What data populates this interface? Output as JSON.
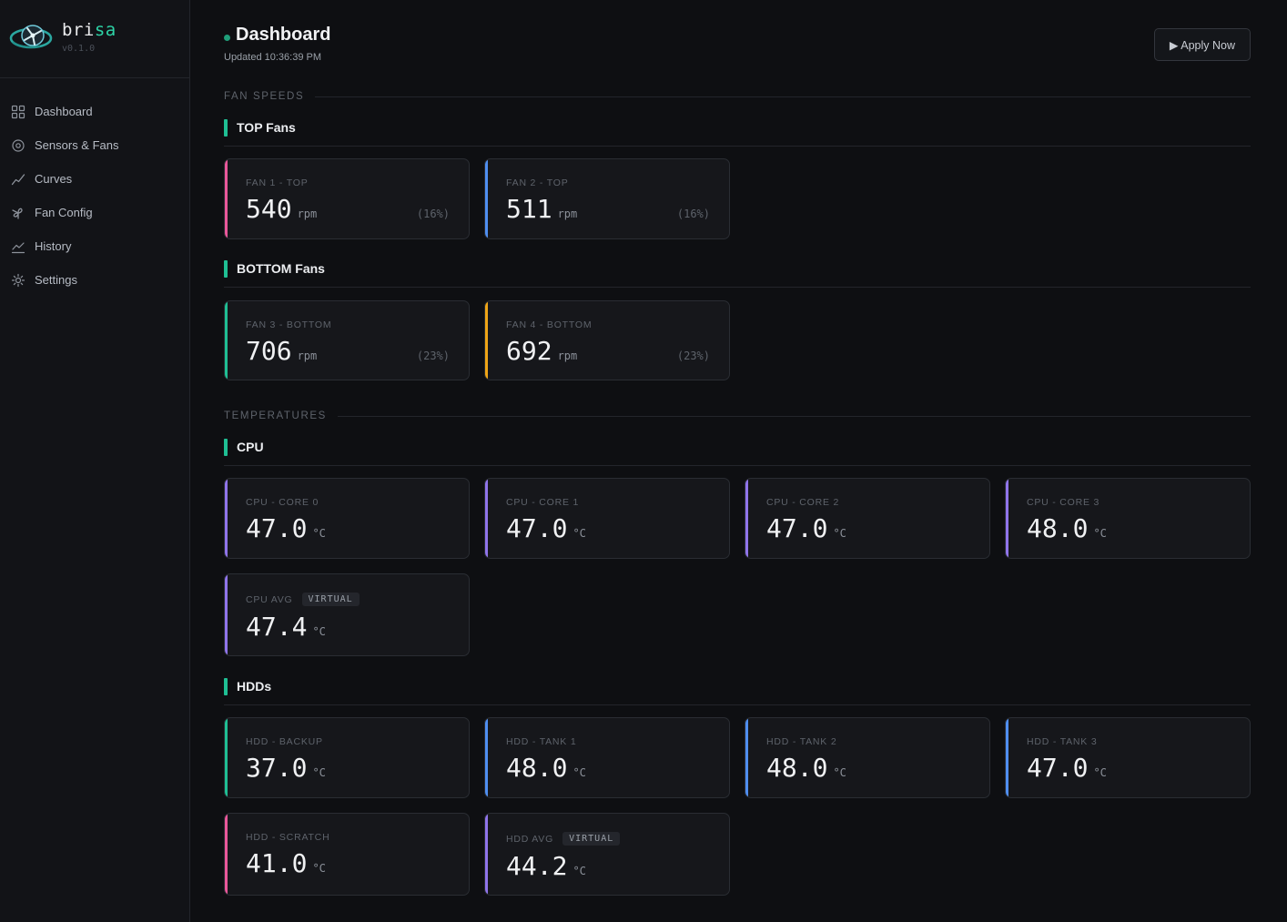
{
  "app": {
    "name_a": "bri",
    "name_b": "sa",
    "version": "v0.1.0"
  },
  "sidebar": {
    "items": [
      {
        "label": "Dashboard",
        "icon": "grid-icon"
      },
      {
        "label": "Sensors & Fans",
        "icon": "sensor-icon"
      },
      {
        "label": "Curves",
        "icon": "curve-icon"
      },
      {
        "label": "Fan Config",
        "icon": "fan-icon"
      },
      {
        "label": "History",
        "icon": "history-chart-icon"
      },
      {
        "label": "Settings",
        "icon": "gear-icon"
      }
    ]
  },
  "header": {
    "title": "Dashboard",
    "updated": "Updated 10:36:39 PM",
    "apply_label": "▶ Apply Now"
  },
  "colors": {
    "teal": "#1fbf94",
    "pink": "#e9579a",
    "blue": "#4f8ef0",
    "amber": "#efa516",
    "purple": "#8f74ea"
  },
  "fan_speeds": {
    "label": "FAN SPEEDS",
    "groups": [
      {
        "title": "TOP Fans",
        "cards": [
          {
            "label": "FAN 1 - TOP",
            "value": "540",
            "unit": "rpm",
            "pct": "(16%)",
            "accent": "#e9579a"
          },
          {
            "label": "FAN 2 - TOP",
            "value": "511",
            "unit": "rpm",
            "pct": "(16%)",
            "accent": "#4f8ef0"
          }
        ]
      },
      {
        "title": "BOTTOM Fans",
        "cards": [
          {
            "label": "FAN 3 - BOTTOM",
            "value": "706",
            "unit": "rpm",
            "pct": "(23%)",
            "accent": "#1fbf94"
          },
          {
            "label": "FAN 4 - BOTTOM",
            "value": "692",
            "unit": "rpm",
            "pct": "(23%)",
            "accent": "#efa516"
          }
        ]
      }
    ]
  },
  "temperatures": {
    "label": "TEMPERATURES",
    "groups": [
      {
        "title": "CPU",
        "cards": [
          {
            "label": "CPU - CORE 0",
            "value": "47.0",
            "unit": "°C",
            "accent": "#8f74ea"
          },
          {
            "label": "CPU - CORE 1",
            "value": "47.0",
            "unit": "°C",
            "accent": "#8f74ea"
          },
          {
            "label": "CPU - CORE 2",
            "value": "47.0",
            "unit": "°C",
            "accent": "#8f74ea"
          },
          {
            "label": "CPU - CORE 3",
            "value": "48.0",
            "unit": "°C",
            "accent": "#8f74ea"
          },
          {
            "label": "CPU AVG",
            "badge": "VIRTUAL",
            "value": "47.4",
            "unit": "°C",
            "accent": "#8f74ea"
          }
        ]
      },
      {
        "title": "HDDs",
        "cards": [
          {
            "label": "HDD - BACKUP",
            "value": "37.0",
            "unit": "°C",
            "accent": "#1fbf94"
          },
          {
            "label": "HDD - TANK 1",
            "value": "48.0",
            "unit": "°C",
            "accent": "#4f8ef0"
          },
          {
            "label": "HDD - TANK 2",
            "value": "48.0",
            "unit": "°C",
            "accent": "#4f8ef0"
          },
          {
            "label": "HDD - TANK 3",
            "value": "47.0",
            "unit": "°C",
            "accent": "#4f8ef0"
          },
          {
            "label": "HDD - SCRATCH",
            "value": "41.0",
            "unit": "°C",
            "accent": "#e9579a"
          },
          {
            "label": "HDD AVG",
            "badge": "VIRTUAL",
            "value": "44.2",
            "unit": "°C",
            "accent": "#8f74ea"
          }
        ]
      }
    ]
  }
}
